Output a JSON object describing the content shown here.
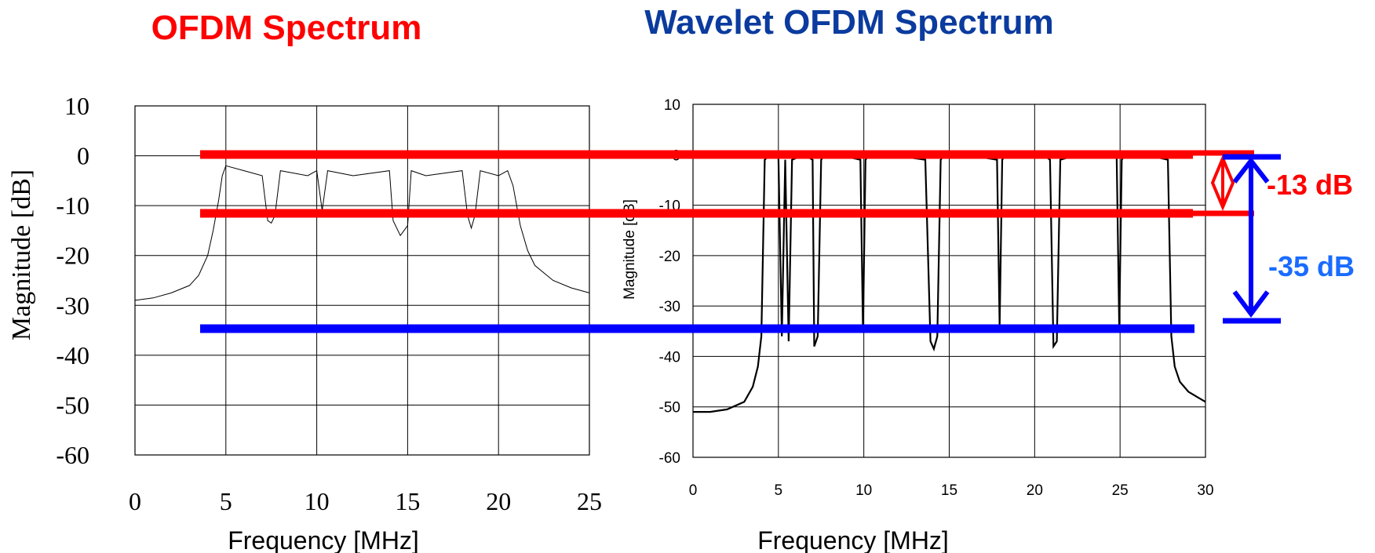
{
  "colors": {
    "red": "#ff0000",
    "blue": "#0000ff",
    "title_left": "#ff0000",
    "title_right": "#0b3b9e",
    "annotation_13": "#ff0000",
    "annotation_35": "#1a6cff",
    "trace": "#000000",
    "grid": "#000000"
  },
  "chart_data": [
    {
      "type": "line",
      "title": "OFDM Spectrum",
      "xlabel": "Frequency [MHz]",
      "ylabel": "Magnitude [dB]",
      "xlim": [
        0,
        25
      ],
      "ylim": [
        -60,
        10
      ],
      "x_ticks": [
        "0",
        "5",
        "10",
        "15",
        "20",
        "25"
      ],
      "y_ticks": [
        "10",
        "0",
        "-10",
        "-20",
        "-30",
        "-40",
        "-50",
        "-60"
      ],
      "grid": true,
      "series": [
        {
          "x": [
            0,
            1,
            2,
            3,
            3.5,
            4,
            4.3,
            4.6,
            4.8,
            5.0,
            6,
            7,
            7.3,
            7.5,
            7.7,
            8,
            9.5,
            10,
            10.3,
            10.6,
            12,
            14,
            14.2,
            14.6,
            15,
            15.2,
            16,
            18,
            18.3,
            18.5,
            18.7,
            19,
            20,
            20.5,
            20.8,
            21.2,
            21.6,
            22,
            23,
            24,
            25
          ],
          "y": [
            -29,
            -28.5,
            -27.5,
            -26,
            -24,
            -20,
            -15,
            -9,
            -4,
            -2,
            -3,
            -4,
            -13,
            -13.5,
            -12,
            -3,
            -4,
            -3,
            -11,
            -3,
            -4,
            -3,
            -13,
            -16,
            -14,
            -3,
            -4,
            -3,
            -12,
            -14.5,
            -12,
            -3,
            -4,
            -3,
            -6,
            -14,
            -19,
            -22,
            -25,
            -26.5,
            -27.5
          ]
        }
      ]
    },
    {
      "type": "line",
      "title": "Wavelet OFDM Spectrum",
      "xlabel": "Frequency [MHz]",
      "ylabel": "Magnitude [dB]",
      "xlim": [
        0,
        30
      ],
      "ylim": [
        -60,
        10
      ],
      "x_ticks": [
        "0",
        "5",
        "10",
        "15",
        "20",
        "25",
        "30"
      ],
      "y_ticks": [
        "10",
        "0",
        "-10",
        "-20",
        "-30",
        "-40",
        "-50",
        "-60"
      ],
      "grid": true,
      "series": [
        {
          "x": [
            0,
            1,
            2,
            3,
            3.5,
            3.8,
            4.0,
            4.2,
            4.5,
            5.0,
            5.2,
            5.4,
            5.6,
            5.8,
            6.5,
            7.0,
            7.1,
            7.3,
            7.5,
            7.7,
            8.5,
            9.8,
            9.95,
            10.1,
            10.3,
            11.5,
            13.6,
            13.9,
            14.1,
            14.3,
            14.5,
            14.7,
            16,
            17.8,
            17.95,
            18.1,
            18.3,
            20.5,
            20.9,
            21.1,
            21.3,
            21.5,
            22.5,
            24.8,
            24.95,
            25.1,
            25.3,
            26.5,
            27.8,
            28.0,
            28.2,
            28.5,
            29,
            29.5,
            30
          ],
          "y": [
            -51,
            -51,
            -50.5,
            -49,
            -46,
            -42,
            -36,
            -1,
            0,
            0,
            -36,
            -1,
            -37,
            -1,
            0,
            -1,
            -38,
            -36,
            -1,
            0,
            0,
            -1,
            -35,
            -1,
            0,
            0,
            -1,
            -37,
            -38.5,
            -36,
            -1,
            0,
            0,
            -1,
            -34,
            -1,
            0,
            0,
            -1,
            -38,
            -37,
            -1,
            0,
            0,
            -34,
            -1,
            0,
            0,
            -1,
            -36,
            -42,
            -45,
            -47,
            -48,
            -49
          ]
        }
      ]
    }
  ],
  "annotations": {
    "label_13db": "-13 dB",
    "label_35db": "-35 dB"
  }
}
